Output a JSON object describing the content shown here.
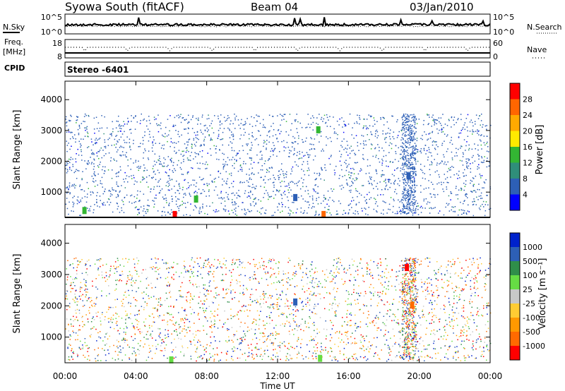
{
  "header": {
    "station": "Syowa South (fitACF)",
    "beam": "Beam 04",
    "date": "03/Jan/2010"
  },
  "top_panels": {
    "nsky_label": "N.Sky",
    "nsearch_label": "N.Search",
    "freq_label": "Freq.",
    "freq_unit": "[MHz]",
    "nave_label": "Nave",
    "cpid_label": "CPID",
    "cpid_value": "Stereo -6401",
    "noise_ticks_left": [
      "10^5",
      "10^0"
    ],
    "noise_ticks_right": [
      "10^5",
      "10^0"
    ],
    "freq_ticks": [
      "18",
      "8"
    ],
    "nave_ticks": [
      "60",
      "0"
    ]
  },
  "time_axis": {
    "label": "Time UT",
    "ticks": [
      "00:00",
      "04:00",
      "08:00",
      "12:00",
      "16:00",
      "20:00",
      "00:00"
    ],
    "hours": [
      0,
      4,
      8,
      12,
      16,
      20,
      24
    ]
  },
  "colors": {
    "power": [
      "#0000ff",
      "#2d5fb6",
      "#2f8e7a",
      "#33b633",
      "#ffea00",
      "#ffaa00",
      "#ff6600",
      "#ff0000"
    ],
    "velocity": [
      "#ff0000",
      "#ff6a00",
      "#ff9900",
      "#ffcc33",
      "#c8c8c8",
      "#66dd44",
      "#2f8e4a",
      "#2d5fb6",
      "#0022cc"
    ]
  },
  "chart_data": [
    {
      "type": "heatmap",
      "name": "power",
      "ylabel": "Slant Range [km]",
      "xlabel": "",
      "yticks": [
        1000,
        2000,
        3000,
        4000
      ],
      "ylim": [
        180,
        4600
      ],
      "xlim": [
        0,
        24
      ],
      "colorbar_label": "Power [dB]",
      "colorbar_ticks": [
        "4",
        "8",
        "12",
        "16",
        "20",
        "24",
        "28"
      ],
      "features": [
        {
          "x": 1.1,
          "y": 380,
          "color": "#33b633"
        },
        {
          "x": 6.2,
          "y": 250,
          "color": "#ff0000"
        },
        {
          "x": 7.4,
          "y": 750,
          "color": "#33b633"
        },
        {
          "x": 13.0,
          "y": 800,
          "color": "#2d5fb6"
        },
        {
          "x": 14.6,
          "y": 250,
          "color": "#ff6600"
        },
        {
          "x": 19.4,
          "y": 1500,
          "color": "#2d5fb6"
        },
        {
          "x": 14.3,
          "y": 3000,
          "color": "#33b633"
        }
      ]
    },
    {
      "type": "heatmap",
      "name": "velocity",
      "ylabel": "Slant Range [km]",
      "xlabel": "Time UT",
      "yticks": [
        1000,
        2000,
        3000,
        4000
      ],
      "ylim": [
        180,
        4600
      ],
      "xlim": [
        0,
        24
      ],
      "colorbar_label": "Velocity [m s⁻¹]",
      "colorbar_ticks": [
        "1000",
        "500",
        "100",
        "25",
        "-25",
        "-100",
        "-500",
        "-1000"
      ],
      "features": [
        {
          "x": 6.0,
          "y": 250,
          "color": "#66dd44"
        },
        {
          "x": 13.0,
          "y": 2100,
          "color": "#2d5fb6"
        },
        {
          "x": 14.4,
          "y": 300,
          "color": "#66dd44"
        },
        {
          "x": 19.3,
          "y": 3200,
          "color": "#ff0000"
        },
        {
          "x": 19.6,
          "y": 2000,
          "color": "#ff6a00"
        }
      ]
    }
  ]
}
